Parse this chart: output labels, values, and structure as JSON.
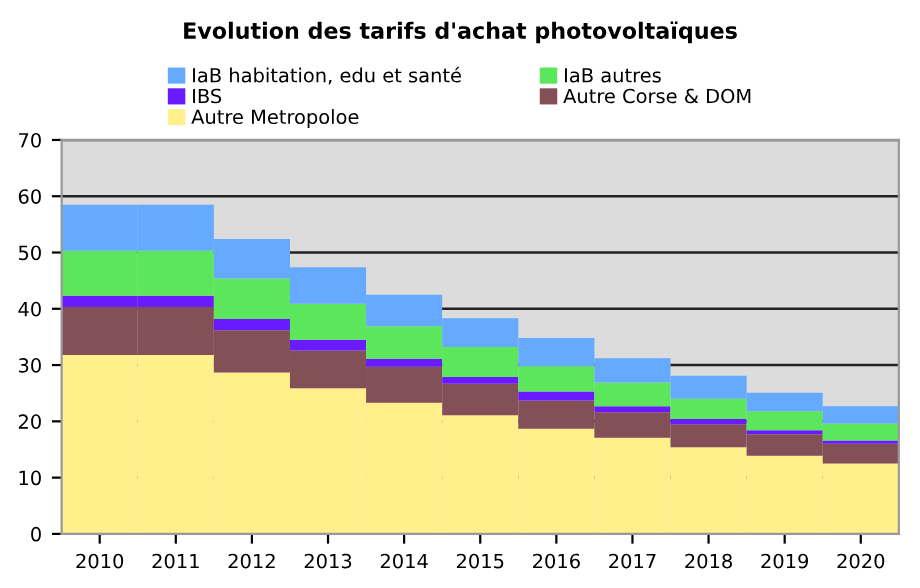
{
  "chart_data": {
    "type": "bar",
    "stacked": true,
    "title": "Evolution des tarifs d'achat photovoltaïques",
    "categories": [
      "2010",
      "2011",
      "2012",
      "2013",
      "2014",
      "2015",
      "2016",
      "2017",
      "2018",
      "2019",
      "2020"
    ],
    "series": [
      {
        "name": "Autre Metropoloe",
        "color": "#fff08c",
        "values": [
          31.8,
          31.8,
          28.7,
          25.9,
          23.3,
          21.1,
          18.7,
          17.1,
          15.4,
          13.9,
          12.5
        ]
      },
      {
        "name": "Autre Corse & DOM",
        "color": "#845058",
        "values": [
          8.5,
          8.5,
          7.5,
          6.7,
          6.4,
          5.6,
          5.0,
          4.5,
          4.1,
          3.8,
          3.5
        ]
      },
      {
        "name": "IBS",
        "color": "#6a1aff",
        "values": [
          2.0,
          2.0,
          2.0,
          1.9,
          1.4,
          1.2,
          1.6,
          1.1,
          0.9,
          0.7,
          0.6
        ]
      },
      {
        "name": "IaB autres",
        "color": "#5ce65c",
        "values": [
          8.0,
          8.0,
          7.2,
          6.4,
          5.8,
          5.3,
          4.5,
          4.2,
          3.6,
          3.4,
          3.0
        ]
      },
      {
        "name": "IaB habitation, edu et santé",
        "color": "#66aaff",
        "values": [
          8.2,
          8.2,
          7.0,
          6.5,
          5.6,
          5.1,
          5.0,
          4.3,
          4.1,
          3.3,
          3.1
        ]
      }
    ],
    "ylim": [
      0,
      70
    ],
    "yticks": [
      0,
      10,
      20,
      30,
      40,
      50,
      60,
      70
    ],
    "grid": "y",
    "legend": "top"
  }
}
